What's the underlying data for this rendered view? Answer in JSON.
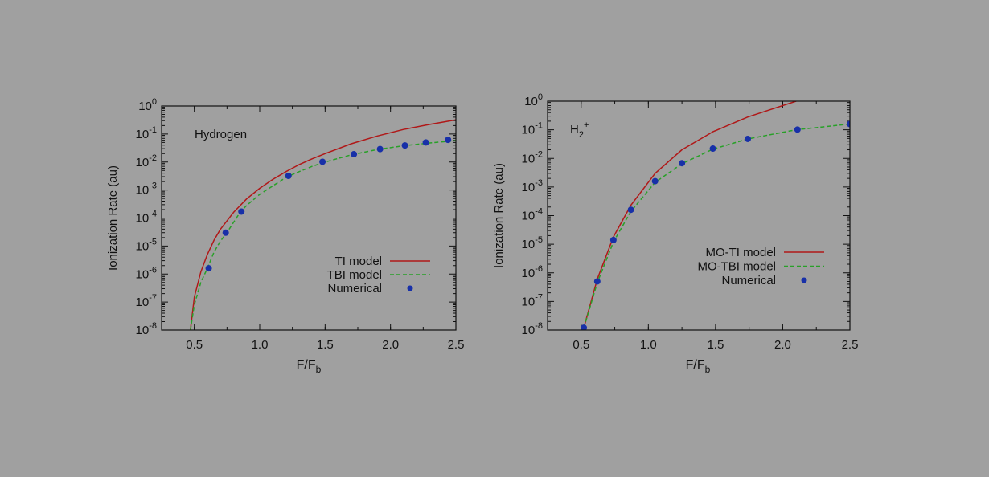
{
  "chart_data": [
    {
      "type": "line",
      "title": "Hydrogen",
      "xlabel": "F/F",
      "xlabel_sub": "b",
      "ylabel": "Ionization Rate (au)",
      "xlim": [
        0.25,
        2.5
      ],
      "ylim": [
        1e-08,
        1
      ],
      "y_scale": "log",
      "x_ticks": [
        "0.5",
        "1.0",
        "1.5",
        "2.0",
        "2.5"
      ],
      "y_tick_exponents": [
        "-8",
        "-7",
        "-6",
        "-5",
        "-4",
        "-3",
        "-2",
        "-1",
        "0"
      ],
      "grid": false,
      "legend_position": "bottom-right",
      "series": [
        {
          "name": "TI   model",
          "style": "solid",
          "color": "#b01818",
          "x": [
            0.47,
            0.5,
            0.55,
            0.6,
            0.65,
            0.7,
            0.8,
            0.9,
            1.0,
            1.1,
            1.2,
            1.3,
            1.4,
            1.5,
            1.7,
            1.9,
            2.1,
            2.3,
            2.5
          ],
          "y": [
            1e-08,
            1.5e-07,
            1.2e-06,
            5e-06,
            1.6e-05,
            4e-05,
            0.00016,
            0.00048,
            0.00115,
            0.0024,
            0.0045,
            0.008,
            0.013,
            0.02,
            0.045,
            0.085,
            0.145,
            0.22,
            0.32
          ]
        },
        {
          "name": "TBI model",
          "style": "dashed",
          "color": "#28a028",
          "x": [
            0.47,
            0.5,
            0.55,
            0.6,
            0.65,
            0.7,
            0.75,
            0.8,
            0.85,
            0.9,
            1.0,
            1.1,
            1.2,
            1.3,
            1.4,
            1.5,
            1.7,
            1.9,
            2.1,
            2.3,
            2.5
          ],
          "y": [
            1e-08,
            8e-08,
            5e-07,
            1.6e-06,
            6e-06,
            1.5e-05,
            3e-05,
            7e-05,
            0.00016,
            0.00028,
            0.0007,
            0.0014,
            0.0028,
            0.0045,
            0.007,
            0.01,
            0.018,
            0.028,
            0.038,
            0.048,
            0.058
          ]
        },
        {
          "name": "Numerical",
          "style": "points",
          "color": "#1830a8",
          "x": [
            0.61,
            0.74,
            0.86,
            1.22,
            1.48,
            1.72,
            1.92,
            2.11,
            2.27,
            2.44
          ],
          "y": [
            1.6e-06,
            3e-05,
            0.00017,
            0.0032,
            0.0102,
            0.019,
            0.029,
            0.039,
            0.05,
            0.062
          ]
        }
      ]
    },
    {
      "type": "line",
      "title": "H",
      "title_sub": "2",
      "title_sup": "+",
      "xlabel": "F/F",
      "xlabel_sub": "b",
      "ylabel": "Ionization Rate (au)",
      "xlim": [
        0.25,
        2.5
      ],
      "ylim": [
        1e-08,
        1
      ],
      "y_scale": "log",
      "x_ticks": [
        "0.5",
        "1.0",
        "1.5",
        "2.0",
        "2.5"
      ],
      "y_tick_exponents": [
        "-8",
        "-7",
        "-6",
        "-5",
        "-4",
        "-3",
        "-2",
        "-1",
        "0"
      ],
      "grid": false,
      "legend_position": "bottom-right",
      "series": [
        {
          "name": "MO-TI model",
          "style": "solid",
          "color": "#b01818",
          "x": [
            0.52,
            0.62,
            0.74,
            0.87,
            1.05,
            1.25,
            1.48,
            1.74,
            2.1
          ],
          "y": [
            1.2e-08,
            6e-07,
            1.8e-05,
            0.00023,
            0.003,
            0.02,
            0.085,
            0.28,
            1.0
          ]
        },
        {
          "name": "MO-TBI model",
          "style": "dashed",
          "color": "#28a028",
          "x": [
            0.52,
            0.62,
            0.74,
            0.87,
            1.05,
            1.25,
            1.48,
            1.74,
            2.1,
            2.5
          ],
          "y": [
            1.2e-08,
            4.5e-07,
            1.2e-05,
            0.00014,
            0.00145,
            0.0065,
            0.021,
            0.048,
            0.1,
            0.16
          ]
        },
        {
          "name": "Numerical",
          "style": "points",
          "color": "#1830a8",
          "x": [
            0.52,
            0.62,
            0.74,
            0.87,
            1.05,
            1.25,
            1.48,
            1.74,
            2.11,
            2.5
          ],
          "y": [
            1.2e-08,
            5e-07,
            1.4e-05,
            0.00016,
            0.0016,
            0.0068,
            0.022,
            0.048,
            0.102,
            0.158
          ]
        }
      ]
    }
  ]
}
